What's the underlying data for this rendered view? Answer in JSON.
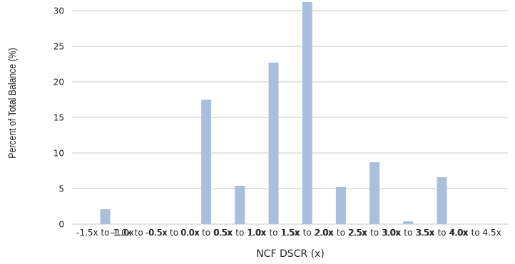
{
  "chart_data": {
    "type": "bar",
    "title": "",
    "xlabel": "NCF DSCR (x)",
    "ylabel": "Percent of Total Balance (%)",
    "categories": [
      "-1.5x to -1.0x",
      "-1.0x to -0.5x",
      "-0.5x to 0.0x",
      "0.0x to 0.5x",
      "0.5x to 1.0x",
      "1.0x to 1.5x",
      "1.5x to 2.0x",
      "2.0x to 2.5x",
      "2.5x to 3.0x",
      "3.0x to 3.5x",
      "3.5x to 4.0x",
      "4.0x to 4.5x"
    ],
    "values": [
      2.1,
      0,
      0,
      17.5,
      5.4,
      22.7,
      31.2,
      5.2,
      8.7,
      0.4,
      6.6,
      0
    ],
    "ylim": [
      0,
      32
    ],
    "yticks": [
      0,
      5,
      10,
      15,
      20,
      25,
      30
    ],
    "grid": true,
    "bar_color": "#a9bfdc",
    "grid_color": "#c8c8c8"
  }
}
